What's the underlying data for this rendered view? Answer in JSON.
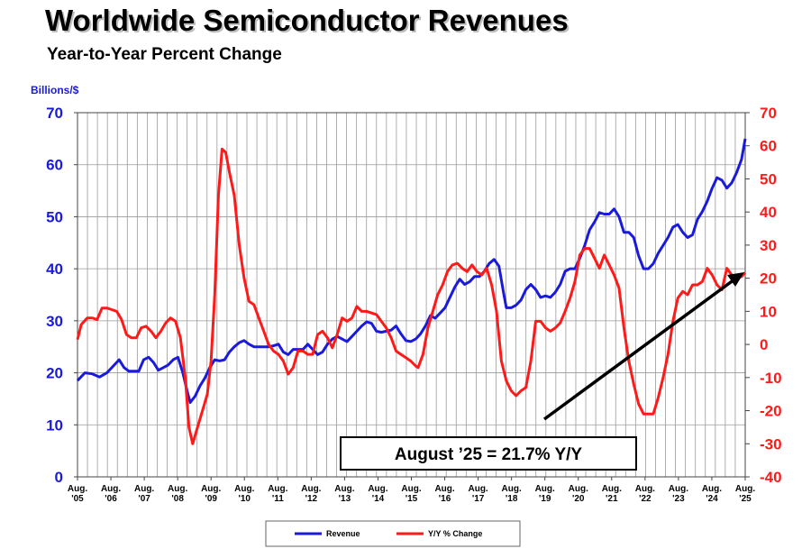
{
  "header": {
    "title": "Worldwide Semiconductor Revenues",
    "subtitle": "Year-to-Year Percent Change"
  },
  "colors": {
    "revenue": "#1a1adb",
    "yoy": "#ff1a1a",
    "grid": "#9a9a9a"
  },
  "chart_data": {
    "type": "line",
    "title": "Worldwide Semiconductor Revenues",
    "subtitle": "Year-to-Year Percent Change",
    "y_left_label": "Billions/$",
    "y_left_range": [
      0,
      70
    ],
    "y_left_ticks": [
      "0",
      "10",
      "20",
      "30",
      "40",
      "50",
      "60",
      "70"
    ],
    "y_right_range": [
      -40,
      70
    ],
    "y_right_ticks": [
      "-40",
      "-30",
      "-20",
      "-10",
      "0",
      "10",
      "20",
      "30",
      "40",
      "50",
      "60",
      "70"
    ],
    "x_tick_labels": [
      [
        "Aug.",
        "'05"
      ],
      [
        "Aug.",
        "'06"
      ],
      [
        "Aug.",
        "'07"
      ],
      [
        "Aug.",
        "'08"
      ],
      [
        "Aug.",
        "'09"
      ],
      [
        "Aug.",
        "'10"
      ],
      [
        "Aug.",
        "'11"
      ],
      [
        "Aug.",
        "'12"
      ],
      [
        "Aug.",
        "'13"
      ],
      [
        "Aug.",
        "'14"
      ],
      [
        "Aug.",
        "'15"
      ],
      [
        "Aug.",
        "'16"
      ],
      [
        "Aug.",
        "'17"
      ],
      [
        "Aug.",
        "'18"
      ],
      [
        "Aug.",
        "'19"
      ],
      [
        "Aug.",
        "'20"
      ],
      [
        "Aug.",
        "'21"
      ],
      [
        "Aug.",
        "'22"
      ],
      [
        "Aug.",
        "'23"
      ],
      [
        "Aug.",
        "'24"
      ],
      [
        "Aug.",
        "'25"
      ]
    ],
    "x_range_years": [
      0,
      20
    ],
    "series": [
      {
        "name": "Revenue",
        "axis": "left",
        "points": [
          [
            0,
            18.5
          ],
          [
            0.3,
            20
          ],
          [
            0.6,
            19.8
          ],
          [
            0.9,
            19.2
          ],
          [
            1.2,
            20
          ],
          [
            1.5,
            21.5
          ],
          [
            1.7,
            22.5
          ],
          [
            1.9,
            21
          ],
          [
            2.1,
            20.3
          ],
          [
            2.3,
            20.3
          ],
          [
            2.5,
            20.3
          ],
          [
            2.7,
            22.5
          ],
          [
            2.9,
            23
          ],
          [
            3.1,
            22
          ],
          [
            3.3,
            20.5
          ],
          [
            3.5,
            21
          ],
          [
            3.7,
            21.5
          ],
          [
            3.9,
            22.5
          ],
          [
            4.1,
            23
          ],
          [
            4.3,
            20
          ],
          [
            4.5,
            16
          ],
          [
            4.6,
            14.3
          ],
          [
            4.8,
            15.5
          ],
          [
            5,
            17.5
          ],
          [
            5.2,
            19
          ],
          [
            5.4,
            21
          ],
          [
            5.6,
            22.5
          ],
          [
            5.8,
            22.3
          ],
          [
            6,
            22.5
          ],
          [
            6.2,
            24
          ],
          [
            6.4,
            25
          ],
          [
            6.6,
            25.8
          ],
          [
            6.8,
            26.2
          ],
          [
            7,
            25.5
          ],
          [
            7.2,
            25
          ],
          [
            7.5,
            25
          ],
          [
            7.8,
            25
          ],
          [
            8,
            25.2
          ],
          [
            8.2,
            25.5
          ],
          [
            8.4,
            24
          ],
          [
            8.6,
            23.5
          ],
          [
            8.8,
            24.5
          ],
          [
            9,
            24.5
          ],
          [
            9.2,
            24.5
          ],
          [
            9.4,
            25.5
          ],
          [
            9.6,
            24.5
          ],
          [
            9.8,
            23.5
          ],
          [
            10,
            24
          ],
          [
            10.2,
            25.5
          ],
          [
            10.4,
            26.5
          ],
          [
            10.6,
            27
          ],
          [
            10.8,
            26.5
          ],
          [
            11,
            26
          ],
          [
            11.2,
            27
          ],
          [
            11.4,
            28
          ],
          [
            11.6,
            29
          ],
          [
            11.8,
            29.8
          ],
          [
            12,
            29.5
          ],
          [
            12.2,
            28
          ],
          [
            12.4,
            27.8
          ],
          [
            12.6,
            28
          ],
          [
            12.8,
            28.2
          ],
          [
            13,
            29
          ],
          [
            13.2,
            27.5
          ],
          [
            13.4,
            26.2
          ],
          [
            13.6,
            26
          ],
          [
            13.8,
            26.5
          ],
          [
            14,
            27.5
          ],
          [
            14.2,
            29
          ],
          [
            14.4,
            31
          ],
          [
            14.6,
            30.5
          ],
          [
            14.8,
            31.5
          ],
          [
            15,
            32.5
          ],
          [
            15.2,
            34.5
          ],
          [
            15.4,
            36.5
          ],
          [
            15.6,
            38
          ],
          [
            15.8,
            37
          ],
          [
            16,
            37.5
          ],
          [
            16.2,
            38.5
          ],
          [
            16.4,
            38.5
          ],
          [
            16.6,
            39.5
          ],
          [
            16.8,
            41
          ],
          [
            17,
            41.8
          ],
          [
            17.2,
            40.5
          ],
          [
            17.4,
            35
          ],
          [
            17.5,
            32.5
          ],
          [
            17.7,
            32.5
          ],
          [
            17.9,
            33
          ],
          [
            18.1,
            34
          ],
          [
            18.3,
            36
          ],
          [
            18.5,
            37
          ],
          [
            18.7,
            36
          ],
          [
            18.9,
            34.5
          ],
          [
            19.1,
            34.8
          ],
          [
            19.3,
            34.5
          ],
          [
            19.5,
            35.5
          ],
          [
            19.7,
            37
          ],
          [
            19.9,
            39.5
          ],
          [
            20.1,
            40
          ],
          [
            20.3,
            40
          ],
          [
            20.5,
            42
          ],
          [
            20.7,
            44.5
          ],
          [
            20.9,
            47.5
          ],
          [
            21.1,
            49
          ],
          [
            21.3,
            50.8
          ],
          [
            21.5,
            50.5
          ],
          [
            21.7,
            50.5
          ],
          [
            21.9,
            51.5
          ],
          [
            22.1,
            50
          ],
          [
            22.3,
            47
          ],
          [
            22.5,
            47
          ],
          [
            22.7,
            46
          ],
          [
            22.9,
            42.5
          ],
          [
            23.1,
            40
          ],
          [
            23.3,
            40
          ],
          [
            23.5,
            41
          ],
          [
            23.7,
            43
          ],
          [
            23.9,
            44.5
          ],
          [
            24.1,
            46
          ],
          [
            24.3,
            48
          ],
          [
            24.5,
            48.5
          ],
          [
            24.7,
            47
          ],
          [
            24.9,
            46
          ],
          [
            25.1,
            46.5
          ],
          [
            25.3,
            49.5
          ],
          [
            25.5,
            51
          ],
          [
            25.7,
            53
          ],
          [
            25.9,
            55.5
          ],
          [
            26.1,
            57.5
          ],
          [
            26.3,
            57
          ],
          [
            26.5,
            55.5
          ],
          [
            26.7,
            56.5
          ],
          [
            26.9,
            58.5
          ],
          [
            27.1,
            61
          ],
          [
            27.25,
            65
          ]
        ]
      },
      {
        "name": "Y/Y % Change",
        "axis": "right",
        "points": [
          [
            0,
            1.5
          ],
          [
            0.15,
            6
          ],
          [
            0.4,
            8
          ],
          [
            0.6,
            8
          ],
          [
            0.8,
            7.5
          ],
          [
            1,
            11
          ],
          [
            1.2,
            11
          ],
          [
            1.4,
            10.5
          ],
          [
            1.6,
            10
          ],
          [
            1.8,
            7.5
          ],
          [
            2,
            3
          ],
          [
            2.2,
            2
          ],
          [
            2.4,
            2
          ],
          [
            2.6,
            5
          ],
          [
            2.8,
            5.5
          ],
          [
            3,
            4
          ],
          [
            3.2,
            2
          ],
          [
            3.4,
            4
          ],
          [
            3.6,
            6.5
          ],
          [
            3.8,
            8
          ],
          [
            4,
            7
          ],
          [
            4.2,
            2
          ],
          [
            4.4,
            -10
          ],
          [
            4.55,
            -25
          ],
          [
            4.7,
            -30
          ],
          [
            4.9,
            -25
          ],
          [
            5.1,
            -20
          ],
          [
            5.3,
            -15
          ],
          [
            5.45,
            -5
          ],
          [
            5.6,
            15
          ],
          [
            5.75,
            45
          ],
          [
            5.9,
            59
          ],
          [
            6.05,
            58
          ],
          [
            6.2,
            52
          ],
          [
            6.4,
            45
          ],
          [
            6.6,
            30
          ],
          [
            6.8,
            20
          ],
          [
            7,
            13
          ],
          [
            7.2,
            12
          ],
          [
            7.4,
            8
          ],
          [
            7.6,
            4
          ],
          [
            7.8,
            0
          ],
          [
            8,
            -2
          ],
          [
            8.2,
            -3
          ],
          [
            8.4,
            -5
          ],
          [
            8.6,
            -9
          ],
          [
            8.8,
            -7
          ],
          [
            9,
            -2
          ],
          [
            9.2,
            -2
          ],
          [
            9.4,
            -3
          ],
          [
            9.6,
            -3
          ],
          [
            9.8,
            3
          ],
          [
            10,
            4
          ],
          [
            10.2,
            2
          ],
          [
            10.4,
            -1
          ],
          [
            10.6,
            3
          ],
          [
            10.8,
            8
          ],
          [
            11,
            7
          ],
          [
            11.2,
            8
          ],
          [
            11.4,
            11.5
          ],
          [
            11.6,
            10
          ],
          [
            11.8,
            10
          ],
          [
            12,
            9.5
          ],
          [
            12.2,
            9
          ],
          [
            12.4,
            7
          ],
          [
            12.6,
            5
          ],
          [
            12.8,
            2
          ],
          [
            13,
            -2
          ],
          [
            13.2,
            -3
          ],
          [
            13.4,
            -4
          ],
          [
            13.6,
            -5
          ],
          [
            13.8,
            -6.5
          ],
          [
            13.9,
            -7
          ],
          [
            14.1,
            -3
          ],
          [
            14.3,
            5
          ],
          [
            14.5,
            10
          ],
          [
            14.7,
            15
          ],
          [
            14.9,
            18
          ],
          [
            15.1,
            22
          ],
          [
            15.3,
            24
          ],
          [
            15.5,
            24.5
          ],
          [
            15.7,
            23
          ],
          [
            15.9,
            22
          ],
          [
            16.1,
            24
          ],
          [
            16.3,
            22
          ],
          [
            16.5,
            21
          ],
          [
            16.7,
            23
          ],
          [
            16.9,
            18
          ],
          [
            17.1,
            10
          ],
          [
            17.3,
            -5
          ],
          [
            17.5,
            -11
          ],
          [
            17.7,
            -14
          ],
          [
            17.9,
            -15.5
          ],
          [
            18.1,
            -14
          ],
          [
            18.3,
            -13
          ],
          [
            18.5,
            -5
          ],
          [
            18.7,
            7
          ],
          [
            18.9,
            7
          ],
          [
            19.1,
            5
          ],
          [
            19.3,
            4
          ],
          [
            19.5,
            5
          ],
          [
            19.7,
            6.5
          ],
          [
            19.9,
            10
          ],
          [
            20.1,
            14
          ],
          [
            20.3,
            19
          ],
          [
            20.5,
            27
          ],
          [
            20.7,
            29
          ],
          [
            20.9,
            29
          ],
          [
            21.1,
            26
          ],
          [
            21.3,
            23
          ],
          [
            21.5,
            27
          ],
          [
            21.7,
            24
          ],
          [
            21.9,
            21
          ],
          [
            22.1,
            17
          ],
          [
            22.3,
            5
          ],
          [
            22.5,
            -5
          ],
          [
            22.7,
            -12
          ],
          [
            22.9,
            -18
          ],
          [
            23.1,
            -21
          ],
          [
            23.3,
            -21
          ],
          [
            23.5,
            -21
          ],
          [
            23.7,
            -16
          ],
          [
            23.9,
            -10
          ],
          [
            24.1,
            -3
          ],
          [
            24.3,
            7
          ],
          [
            24.5,
            14
          ],
          [
            24.7,
            16
          ],
          [
            24.9,
            15
          ],
          [
            25.1,
            18
          ],
          [
            25.3,
            18
          ],
          [
            25.5,
            19
          ],
          [
            25.7,
            23
          ],
          [
            25.9,
            21
          ],
          [
            26.1,
            18
          ],
          [
            26.3,
            16.5
          ],
          [
            26.5,
            23
          ],
          [
            26.7,
            21
          ],
          [
            26.9,
            20
          ],
          [
            27.1,
            20.5
          ],
          [
            27.25,
            21.7
          ]
        ]
      }
    ],
    "annotation": "August ’25 = 21.7% Y/Y",
    "legend": [
      "Revenue",
      "Y/Y % Change"
    ],
    "legend_position": "bottom-center"
  }
}
